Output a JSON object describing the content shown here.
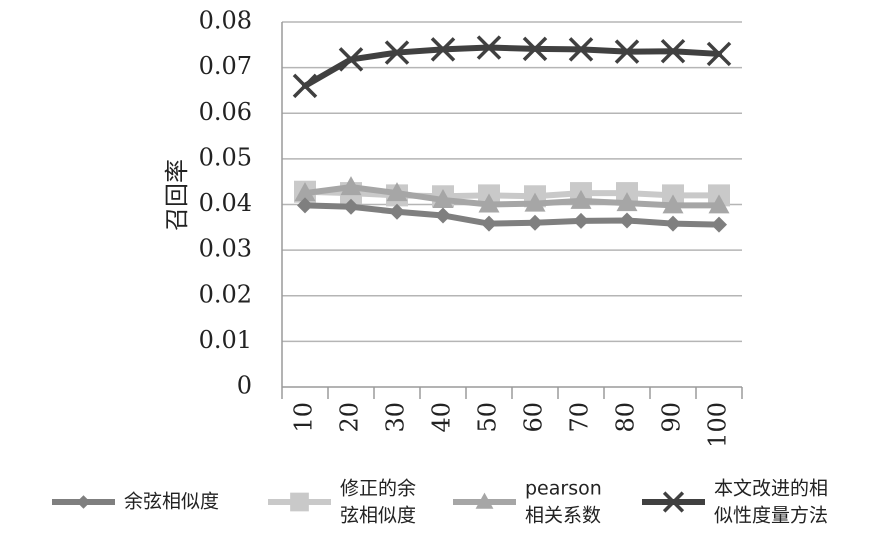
{
  "chart_data": {
    "type": "line",
    "title": "",
    "xlabel": "",
    "ylabel": "召回率",
    "categories": [
      "10",
      "20",
      "30",
      "40",
      "50",
      "60",
      "70",
      "80",
      "90",
      "100"
    ],
    "ylim": [
      0,
      0.08
    ],
    "yticks": [
      "0",
      "0.01",
      "0.02",
      "0.03",
      "0.04",
      "0.05",
      "0.06",
      "0.07",
      "0.08"
    ],
    "grid": true,
    "legend_position": "bottom",
    "series": [
      {
        "name": "余弦相似度",
        "legend_lines": [
          "余弦相似度"
        ],
        "color": "#7f7f7f",
        "marker": "diamond",
        "values": [
          0.0398,
          0.0395,
          0.0384,
          0.0376,
          0.0358,
          0.036,
          0.0364,
          0.0365,
          0.0358,
          0.0356
        ]
      },
      {
        "name": "修正的余弦相似度",
        "legend_lines": [
          "修正的余",
          "弦相似度"
        ],
        "color": "#c9c9c9",
        "marker": "square",
        "values": [
          0.0428,
          0.0425,
          0.042,
          0.0418,
          0.042,
          0.0418,
          0.0425,
          0.0425,
          0.042,
          0.042
        ]
      },
      {
        "name": "pearson相关系数",
        "legend_lines": [
          "pearson",
          "相关系数"
        ],
        "color": "#a6a6a6",
        "marker": "triangle",
        "values": [
          0.0425,
          0.0438,
          0.0425,
          0.041,
          0.04,
          0.0402,
          0.0408,
          0.0403,
          0.0398,
          0.0398
        ]
      },
      {
        "name": "本文改进的相似性度量方法",
        "legend_lines": [
          "本文改进的相",
          "似性度量方法"
        ],
        "color": "#404040",
        "marker": "x",
        "values": [
          0.066,
          0.0718,
          0.0733,
          0.074,
          0.0744,
          0.0741,
          0.074,
          0.0735,
          0.0736,
          0.073
        ]
      }
    ]
  }
}
